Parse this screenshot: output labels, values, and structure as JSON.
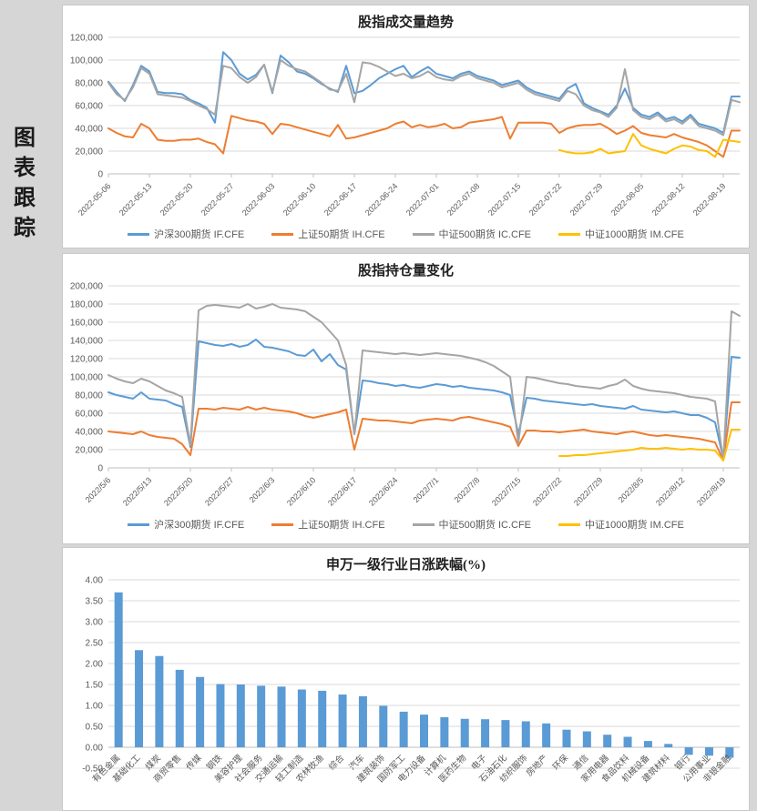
{
  "page": {
    "sidebar_label": "图表跟踪"
  },
  "colors": {
    "if_blue": "#5B9BD5",
    "ih_orange": "#ED7D31",
    "ic_gray": "#A5A5A5",
    "im_yellow": "#FFC000",
    "bar_blue": "#5B9BD5",
    "grid": "#D9D9D9",
    "axis": "#BFBFBF",
    "tick_text": "#595959"
  },
  "legend_items": [
    {
      "label": "沪深300期货 IF.CFE",
      "color": "#5B9BD5"
    },
    {
      "label": "上证50期货 IH.CFE",
      "color": "#ED7D31"
    },
    {
      "label": "中证500期货 IC.CFE",
      "color": "#A5A5A5"
    },
    {
      "label": "中证1000期货 IM.CFE",
      "color": "#FFC000"
    }
  ],
  "chart_data": [
    {
      "type": "line",
      "title": "股指成交量趋势",
      "ylim": [
        0,
        120000
      ],
      "ytick": 20000,
      "grid": true,
      "legend_position": "bottom",
      "n_points": 78,
      "x_label_every": 5,
      "x_labels": [
        "2022-05-06",
        "2022-05-13",
        "2022-05-20",
        "2022-05-27",
        "2022-06-03",
        "2022-06-10",
        "2022-06-17",
        "2022-06-24",
        "2022-07-01",
        "2022-07-08",
        "2022-07-15",
        "2022-07-22",
        "2022-07-29",
        "2022-08-05",
        "2022-08-12",
        "2022-08-19"
      ],
      "series": [
        {
          "name": "沪深300期货 IF.CFE",
          "color": "#5B9BD5",
          "start_index": 0,
          "values": [
            81000,
            72000,
            64000,
            78000,
            95000,
            90000,
            72000,
            71000,
            71000,
            70000,
            65000,
            62000,
            58000,
            45000,
            107000,
            100000,
            88000,
            83000,
            87000,
            96000,
            71000,
            104000,
            98000,
            90000,
            88000,
            84000,
            79000,
            75000,
            72000,
            95000,
            71000,
            73000,
            78000,
            84000,
            88000,
            92000,
            95000,
            85000,
            90000,
            94000,
            88000,
            86000,
            84000,
            88000,
            90000,
            86000,
            84000,
            82000,
            78000,
            80000,
            82000,
            76000,
            72000,
            70000,
            68000,
            66000,
            75000,
            79000,
            62000,
            58000,
            55000,
            52000,
            60000,
            75000,
            58000,
            52000,
            50000,
            54000,
            48000,
            50000,
            46000,
            52000,
            44000,
            42000,
            40000,
            36000,
            68000,
            68000
          ]
        },
        {
          "name": "上证50期货 IH.CFE",
          "color": "#ED7D31",
          "start_index": 0,
          "values": [
            40000,
            36000,
            33000,
            32000,
            44000,
            40000,
            30000,
            29000,
            29000,
            30000,
            30000,
            31000,
            28000,
            26000,
            18000,
            51000,
            49000,
            47000,
            46000,
            44000,
            35000,
            44000,
            43000,
            41000,
            39000,
            37000,
            35000,
            33000,
            43000,
            31000,
            32000,
            34000,
            36000,
            38000,
            40000,
            44000,
            46000,
            41000,
            43000,
            41000,
            42000,
            44000,
            40000,
            41000,
            45000,
            46000,
            47000,
            48000,
            50000,
            31000,
            45000,
            45000,
            45000,
            45000,
            44000,
            36000,
            40000,
            42000,
            43000,
            43000,
            44000,
            40000,
            35000,
            38000,
            42000,
            36000,
            34000,
            33000,
            32000,
            35000,
            32000,
            30000,
            28000,
            25000,
            20000,
            15000,
            38000,
            38000
          ]
        },
        {
          "name": "中证500期货 IC.CFE",
          "color": "#A5A5A5",
          "start_index": 0,
          "values": [
            80000,
            70000,
            65000,
            76000,
            93000,
            88000,
            70000,
            69000,
            68000,
            67000,
            64000,
            60000,
            57000,
            52000,
            95000,
            93000,
            85000,
            80000,
            85000,
            96000,
            72000,
            100000,
            95000,
            92000,
            90000,
            85000,
            80000,
            74000,
            73000,
            88000,
            63000,
            98000,
            97000,
            94000,
            90000,
            86000,
            88000,
            84000,
            86000,
            90000,
            85000,
            83000,
            82000,
            86000,
            88000,
            84000,
            82000,
            80000,
            76000,
            78000,
            80000,
            74000,
            70000,
            68000,
            66000,
            64000,
            73000,
            70000,
            60000,
            56000,
            54000,
            50000,
            58000,
            92000,
            56000,
            50000,
            48000,
            52000,
            46000,
            48000,
            44000,
            50000,
            42000,
            40000,
            38000,
            34000,
            65000,
            63000
          ]
        },
        {
          "name": "中证1000期货 IM.CFE",
          "color": "#FFC000",
          "start_index": 55,
          "values": [
            21000,
            19000,
            18000,
            18000,
            19000,
            22000,
            18000,
            19000,
            20000,
            35000,
            25000,
            22000,
            20000,
            18000,
            22000,
            25000,
            24000,
            21000,
            20000,
            15000,
            30000,
            29000,
            28000
          ]
        }
      ]
    },
    {
      "type": "line",
      "title": "股指持仓量变化",
      "ylim": [
        0,
        200000
      ],
      "ytick": 20000,
      "grid": true,
      "legend_position": "bottom",
      "n_points": 78,
      "x_label_every": 5,
      "x_labels": [
        "2022/5/6",
        "2022/5/13",
        "2022/5/20",
        "2022/5/27",
        "2022/6/3",
        "2022/6/10",
        "2022/6/17",
        "2022/6/24",
        "2022/7/1",
        "2022/7/8",
        "2022/7/15",
        "2022/7/22",
        "2022/7/29",
        "2022/8/5",
        "2022/8/12",
        "2022/8/19"
      ],
      "series": [
        {
          "name": "沪深300期货 IF.CFE",
          "color": "#5B9BD5",
          "start_index": 0,
          "values": [
            83000,
            80000,
            78000,
            76000,
            83000,
            76000,
            75000,
            74000,
            70000,
            67000,
            23000,
            139000,
            137000,
            135000,
            134000,
            136000,
            133000,
            135000,
            141000,
            133000,
            132000,
            130000,
            128000,
            124000,
            123000,
            130000,
            117000,
            125000,
            113000,
            108000,
            37000,
            96000,
            95000,
            93000,
            92000,
            90000,
            91000,
            89000,
            88000,
            90000,
            92000,
            91000,
            89000,
            90000,
            88000,
            87000,
            86000,
            85000,
            83000,
            80000,
            37000,
            77000,
            76000,
            74000,
            73000,
            72000,
            71000,
            70000,
            69000,
            70000,
            68000,
            67000,
            66000,
            65000,
            68000,
            64000,
            63000,
            62000,
            61000,
            62000,
            60000,
            58000,
            58000,
            55000,
            50000,
            10000,
            122000,
            121000
          ]
        },
        {
          "name": "上证50期货 IH.CFE",
          "color": "#ED7D31",
          "start_index": 0,
          "values": [
            40000,
            39000,
            38000,
            37000,
            40000,
            36000,
            34000,
            33000,
            32000,
            26000,
            14000,
            65000,
            65000,
            64000,
            66000,
            65000,
            64000,
            67000,
            64000,
            66000,
            64000,
            63000,
            62000,
            60000,
            57000,
            55000,
            57000,
            59000,
            61000,
            64000,
            20000,
            54000,
            53000,
            52000,
            52000,
            51000,
            50000,
            49000,
            52000,
            53000,
            54000,
            53000,
            52000,
            55000,
            56000,
            54000,
            52000,
            50000,
            48000,
            45000,
            24000,
            41000,
            41000,
            40000,
            40000,
            39000,
            40000,
            41000,
            42000,
            40000,
            39000,
            38000,
            37000,
            39000,
            40000,
            38000,
            36000,
            35000,
            36000,
            35000,
            34000,
            33000,
            32000,
            30000,
            28000,
            8000,
            72000,
            72000
          ]
        },
        {
          "name": "中证500期货 IC.CFE",
          "color": "#A5A5A5",
          "start_index": 0,
          "values": [
            102000,
            98000,
            95000,
            93000,
            98000,
            95000,
            90000,
            85000,
            82000,
            78000,
            25000,
            173000,
            178000,
            179000,
            178000,
            177000,
            176000,
            180000,
            175000,
            177000,
            180000,
            176000,
            175000,
            174000,
            172000,
            166000,
            160000,
            150000,
            140000,
            113000,
            37000,
            129000,
            128000,
            127000,
            126000,
            125000,
            126000,
            125000,
            124000,
            125000,
            126000,
            125000,
            124000,
            123000,
            121000,
            119000,
            116000,
            112000,
            106000,
            100000,
            27000,
            100000,
            99000,
            97000,
            95000,
            93000,
            92000,
            90000,
            89000,
            88000,
            87000,
            90000,
            92000,
            97000,
            90000,
            87000,
            85000,
            84000,
            83000,
            82000,
            80000,
            78000,
            77000,
            76000,
            73000,
            8000,
            172000,
            167000
          ]
        },
        {
          "name": "中证1000期货 IM.CFE",
          "color": "#FFC000",
          "start_index": 55,
          "values": [
            13000,
            13000,
            14000,
            14000,
            15000,
            16000,
            17000,
            18000,
            19000,
            20000,
            22000,
            21000,
            21000,
            22000,
            21000,
            20000,
            21000,
            20000,
            20000,
            19000,
            8000,
            42000,
            42000
          ]
        }
      ]
    },
    {
      "type": "bar",
      "title": "申万一级行业日涨跌幅(%)",
      "ylim": [
        -0.5,
        4.0
      ],
      "ytick": 0.5,
      "grid": true,
      "bar_color": "#5B9BD5",
      "categories": [
        "有色金属",
        "基础化工",
        "煤炭",
        "商贸零售",
        "传媒",
        "钢铁",
        "美容护理",
        "社会服务",
        "交通运输",
        "轻工制造",
        "农林牧渔",
        "综合",
        "汽车",
        "建筑装饰",
        "国防军工",
        "电力设备",
        "计算机",
        "医药生物",
        "电子",
        "石油石化",
        "纺织服饰",
        "房地产",
        "环保",
        "通信",
        "家用电器",
        "食品饮料",
        "机械设备",
        "建筑材料",
        "银行",
        "公用事业",
        "非银金融"
      ],
      "values": [
        3.7,
        2.32,
        2.18,
        1.85,
        1.68,
        1.51,
        1.5,
        1.47,
        1.45,
        1.38,
        1.35,
        1.26,
        1.22,
        0.99,
        0.85,
        0.78,
        0.72,
        0.68,
        0.67,
        0.65,
        0.62,
        0.57,
        0.42,
        0.38,
        0.3,
        0.25,
        0.15,
        0.08,
        -0.18,
        -0.2,
        -0.25
      ]
    }
  ]
}
